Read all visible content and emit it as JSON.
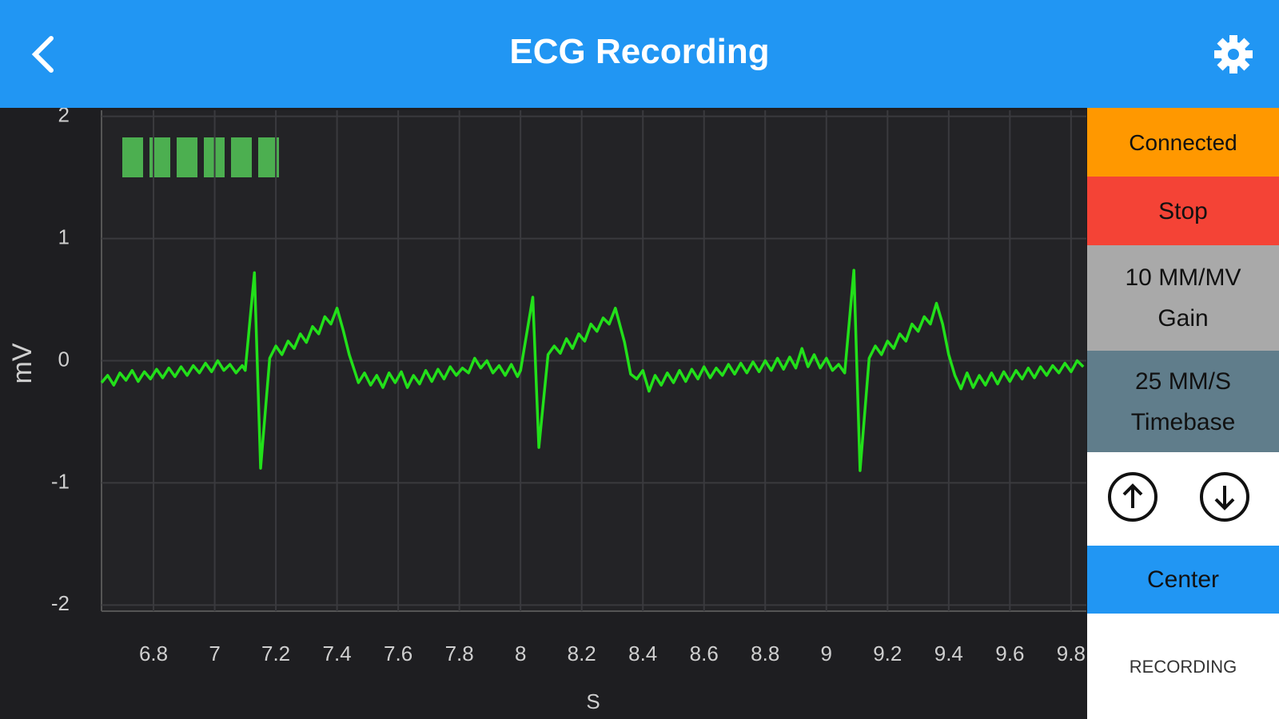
{
  "header": {
    "title": "ECG Recording"
  },
  "controls": {
    "status": "Connected",
    "stop": "Stop",
    "gain_value": "10 MM/MV",
    "gain_label": "Gain",
    "timebase_value": "25 MM/S",
    "timebase_label": "Timebase",
    "center": "Center",
    "mode": "RECORDING"
  },
  "chart_data": {
    "type": "line",
    "x_label": "S",
    "y_label": "mV",
    "xlim": [
      6.63,
      9.85
    ],
    "ylim": [
      -2.05,
      2.05
    ],
    "xticks": [
      6.8,
      7,
      7.2,
      7.4,
      7.6,
      7.8,
      8,
      8.2,
      8.4,
      8.6,
      8.8,
      9,
      9.2,
      9.4,
      9.6,
      9.8
    ],
    "yticks": [
      2,
      1,
      0,
      -1,
      -2
    ],
    "grid": true,
    "x": [
      6.63,
      6.65,
      6.67,
      6.69,
      6.71,
      6.73,
      6.75,
      6.77,
      6.79,
      6.81,
      6.83,
      6.85,
      6.87,
      6.89,
      6.91,
      6.93,
      6.95,
      6.97,
      6.99,
      7.01,
      7.03,
      7.05,
      7.07,
      7.09,
      7.1,
      7.13,
      7.15,
      7.18,
      7.2,
      7.22,
      7.24,
      7.26,
      7.28,
      7.3,
      7.32,
      7.34,
      7.36,
      7.38,
      7.4,
      7.42,
      7.44,
      7.47,
      7.49,
      7.51,
      7.53,
      7.55,
      7.57,
      7.59,
      7.61,
      7.63,
      7.65,
      7.67,
      7.69,
      7.71,
      7.73,
      7.75,
      7.77,
      7.79,
      7.81,
      7.83,
      7.85,
      7.87,
      7.89,
      7.91,
      7.93,
      7.95,
      7.97,
      7.99,
      8.0,
      8.04,
      8.06,
      8.09,
      8.11,
      8.13,
      8.15,
      8.17,
      8.19,
      8.21,
      8.23,
      8.25,
      8.27,
      8.29,
      8.31,
      8.34,
      8.36,
      8.38,
      8.4,
      8.42,
      8.44,
      8.46,
      8.48,
      8.5,
      8.52,
      8.54,
      8.56,
      8.58,
      8.6,
      8.62,
      8.64,
      8.66,
      8.68,
      8.7,
      8.72,
      8.74,
      8.76,
      8.78,
      8.8,
      8.82,
      8.84,
      8.86,
      8.88,
      8.9,
      8.92,
      8.94,
      8.96,
      8.98,
      9.0,
      9.02,
      9.04,
      9.06,
      9.09,
      9.11,
      9.14,
      9.16,
      9.18,
      9.2,
      9.22,
      9.24,
      9.26,
      9.28,
      9.3,
      9.32,
      9.34,
      9.36,
      9.38,
      9.4,
      9.42,
      9.44,
      9.46,
      9.48,
      9.5,
      9.52,
      9.54,
      9.56,
      9.58,
      9.6,
      9.62,
      9.64,
      9.66,
      9.68,
      9.7,
      9.72,
      9.74,
      9.76,
      9.78,
      9.8,
      9.82,
      9.84
    ],
    "series": [
      {
        "color": "#22e01a",
        "values": [
          -0.18,
          -0.12,
          -0.2,
          -0.1,
          -0.16,
          -0.08,
          -0.17,
          -0.09,
          -0.15,
          -0.07,
          -0.14,
          -0.06,
          -0.13,
          -0.05,
          -0.12,
          -0.04,
          -0.1,
          -0.02,
          -0.09,
          0.0,
          -0.08,
          -0.03,
          -0.1,
          -0.04,
          -0.08,
          0.72,
          -0.88,
          0.02,
          0.12,
          0.05,
          0.16,
          0.1,
          0.22,
          0.15,
          0.28,
          0.22,
          0.36,
          0.3,
          0.43,
          0.25,
          0.05,
          -0.18,
          -0.1,
          -0.2,
          -0.12,
          -0.22,
          -0.1,
          -0.18,
          -0.09,
          -0.22,
          -0.12,
          -0.19,
          -0.08,
          -0.17,
          -0.07,
          -0.15,
          -0.05,
          -0.12,
          -0.06,
          -0.1,
          0.02,
          -0.06,
          0.0,
          -0.1,
          -0.04,
          -0.12,
          -0.03,
          -0.13,
          -0.08,
          0.52,
          -0.71,
          0.05,
          0.12,
          0.06,
          0.18,
          0.1,
          0.22,
          0.16,
          0.3,
          0.24,
          0.35,
          0.3,
          0.43,
          0.15,
          -0.11,
          -0.15,
          -0.08,
          -0.25,
          -0.12,
          -0.2,
          -0.1,
          -0.18,
          -0.08,
          -0.17,
          -0.07,
          -0.15,
          -0.05,
          -0.14,
          -0.06,
          -0.12,
          -0.03,
          -0.11,
          -0.02,
          -0.1,
          -0.01,
          -0.09,
          0.0,
          -0.08,
          0.02,
          -0.07,
          0.03,
          -0.06,
          0.1,
          -0.05,
          0.05,
          -0.06,
          0.02,
          -0.08,
          -0.03,
          -0.1,
          0.74,
          -0.9,
          0.02,
          0.12,
          0.05,
          0.16,
          0.1,
          0.22,
          0.16,
          0.3,
          0.24,
          0.36,
          0.3,
          0.47,
          0.3,
          0.05,
          -0.12,
          -0.23,
          -0.1,
          -0.22,
          -0.12,
          -0.2,
          -0.1,
          -0.19,
          -0.09,
          -0.17,
          -0.08,
          -0.15,
          -0.06,
          -0.14,
          -0.05,
          -0.12,
          -0.04,
          -0.1,
          -0.02,
          -0.09,
          0.0,
          -0.05
        ]
      }
    ]
  }
}
